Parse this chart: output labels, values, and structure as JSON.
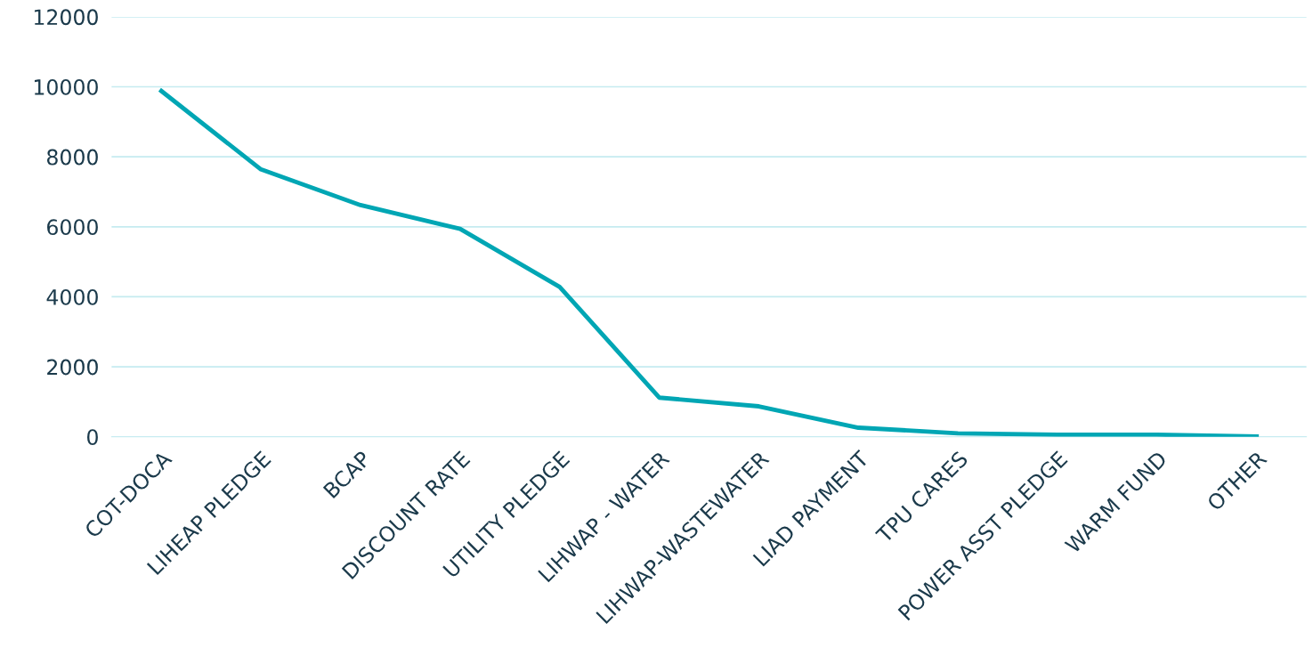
{
  "chart_data": {
    "type": "line",
    "categories": [
      "COT-DOCA",
      "LIHEAP PLEDGE",
      "BCAP",
      "DISCOUNT RATE",
      "UTILITY PLEDGE",
      "LIHWAP - WATER",
      "LIHWAP-WASTEWATER",
      "LIAD PAYMENT",
      "TPU CARES",
      "POWER ASST PLEDGE",
      "WARM FUND",
      "OTHER"
    ],
    "series": [
      {
        "color": "#00a6b4",
        "values": [
          9880,
          7640,
          6620,
          5940,
          4280,
          1120,
          870,
          260,
          100,
          60,
          60,
          10
        ]
      }
    ],
    "ylim": [
      0,
      12000
    ],
    "yticks": [
      0,
      2000,
      4000,
      6000,
      8000,
      10000,
      12000
    ],
    "grid": "y",
    "legend": false,
    "marker": "none",
    "line_style": "solid"
  }
}
